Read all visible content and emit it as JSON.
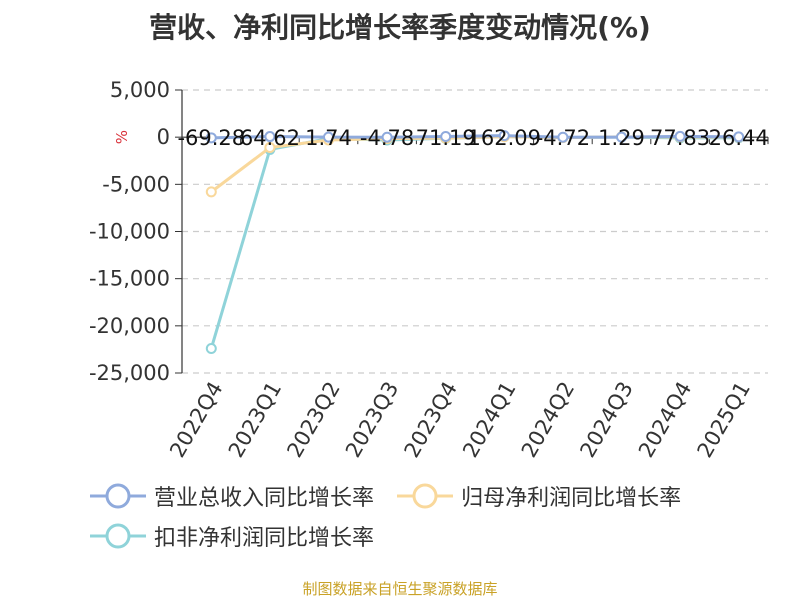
{
  "title": "营收、净利同比增长率季度变动情况(%)",
  "source": "制图数据来自恒生聚源数据库",
  "chart_data": {
    "type": "line",
    "title": "营收、净利同比增长率季度变动情况(%)",
    "unit": "%",
    "categories": [
      "2022Q4",
      "2023Q1",
      "2023Q2",
      "2023Q3",
      "2023Q4",
      "2024Q1",
      "2024Q2",
      "2024Q3",
      "2024Q4",
      "2025Q1"
    ],
    "ylim": [
      -25000,
      5000
    ],
    "yticks": [
      5000,
      0,
      -5000,
      -10000,
      -15000,
      -20000,
      -25000
    ],
    "ytick_labels": [
      "5,000",
      "0",
      "-5,000",
      "-10,000",
      "-15,000",
      "-20,000",
      "-25,000"
    ],
    "grid": true,
    "legend_position": "bottom",
    "series": [
      {
        "name": "营业总收入同比增长率",
        "color": "#8faadc",
        "values": [
          -69.28,
          64.62,
          1.74,
          -4.78,
          71.19,
          162.09,
          -4.72,
          1.29,
          77.83,
          26.44
        ]
      },
      {
        "name": "归母净利润同比增长率",
        "color": "#f9d89b",
        "values": [
          -5800,
          -1100,
          -300,
          -150,
          -100,
          50,
          -50,
          30,
          20,
          10
        ]
      },
      {
        "name": "扣非净利润同比增长率",
        "color": "#8fd3d9",
        "values": [
          -22400,
          -1300,
          -150,
          -300,
          -120,
          60,
          -40,
          20,
          -80,
          -60
        ]
      }
    ],
    "data_labels": [
      "-69.28",
      "64.62",
      "1.74",
      "-4.78",
      "71.19",
      "162.09",
      "-4.72",
      "1.29",
      "77.83",
      "26.44"
    ]
  }
}
